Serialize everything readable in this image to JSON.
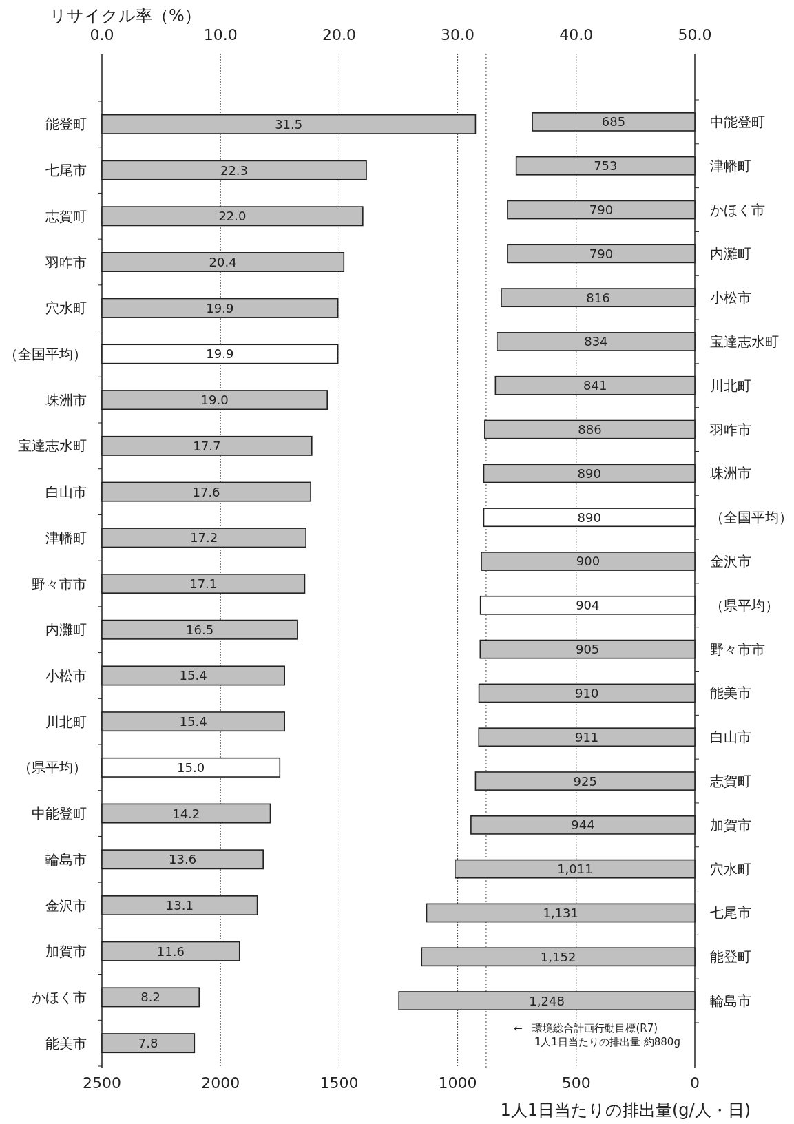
{
  "chart_data": [
    {
      "type": "bar",
      "orientation": "horizontal",
      "xlabel": "リサイクル率（%）",
      "grid": "x",
      "categories": [
        "能登町",
        "七尾市",
        "志賀町",
        "羽咋市",
        "穴水町",
        "（全国平均）",
        "珠洲市",
        "宝達志水町",
        "白山市",
        "津幡町",
        "野々市市",
        "内灘町",
        "小松市",
        "川北町",
        "（県平均）",
        "中能登町",
        "輪島市",
        "金沢市",
        "加賀市",
        "かほく市",
        "能美市"
      ],
      "values": [
        31.5,
        22.3,
        22.0,
        20.4,
        19.9,
        19.9,
        19.0,
        17.7,
        17.6,
        17.2,
        17.1,
        16.5,
        15.4,
        15.4,
        15.0,
        14.2,
        13.6,
        13.1,
        11.6,
        8.2,
        7.8
      ],
      "value_labels": [
        "31.5",
        "22.3",
        "22.0",
        "20.4",
        "19.9",
        "19.9",
        "19.0",
        "17.7",
        "17.6",
        "17.2",
        "17.1",
        "16.5",
        "15.4",
        "15.4",
        "15.0",
        "14.2",
        "13.6",
        "13.1",
        "11.6",
        "8.2",
        "7.8"
      ],
      "colors": [
        "#c0c0c0",
        "#c0c0c0",
        "#c0c0c0",
        "#c0c0c0",
        "#c0c0c0",
        "#ffffff",
        "#c0c0c0",
        "#c0c0c0",
        "#c0c0c0",
        "#c0c0c0",
        "#c0c0c0",
        "#c0c0c0",
        "#c0c0c0",
        "#c0c0c0",
        "#ffffff",
        "#c0c0c0",
        "#c0c0c0",
        "#c0c0c0",
        "#c0c0c0",
        "#c0c0c0",
        "#c0c0c0"
      ],
      "xlim": [
        0,
        50
      ],
      "xticks": [
        {
          "value": 0,
          "label": "0.0"
        },
        {
          "value": 10,
          "label": "10.0"
        },
        {
          "value": 20,
          "label": "20.0"
        },
        {
          "value": 30,
          "label": "30.0"
        },
        {
          "value": 40,
          "label": "40.0"
        },
        {
          "value": 50,
          "label": "50.0"
        }
      ]
    },
    {
      "type": "bar",
      "orientation": "horizontal",
      "xlabel": "1人1日当たりの排出量(g/人・日)",
      "categories": [
        "中能登町",
        "津幡町",
        "かほく市",
        "内灘町",
        "小松市",
        "宝達志水町",
        "川北町",
        "羽咋市",
        "珠洲市",
        "（全国平均）",
        "金沢市",
        "（県平均）",
        "野々市市",
        "能美市",
        "白山市",
        "志賀町",
        "加賀市",
        "穴水町",
        "七尾市",
        "能登町",
        "輪島市"
      ],
      "values": [
        685,
        753,
        790,
        790,
        816,
        834,
        841,
        886,
        890,
        890,
        900,
        904,
        905,
        910,
        911,
        925,
        944,
        1011,
        1131,
        1152,
        1248
      ],
      "value_labels": [
        "685",
        "753",
        "790",
        "790",
        "816",
        "834",
        "841",
        "886",
        "890",
        "890",
        "900",
        "904",
        "905",
        "910",
        "911",
        "925",
        "944",
        "1,011",
        "1,131",
        "1,152",
        "1,248"
      ],
      "colors": [
        "#c0c0c0",
        "#c0c0c0",
        "#c0c0c0",
        "#c0c0c0",
        "#c0c0c0",
        "#c0c0c0",
        "#c0c0c0",
        "#c0c0c0",
        "#c0c0c0",
        "#ffffff",
        "#c0c0c0",
        "#ffffff",
        "#c0c0c0",
        "#c0c0c0",
        "#c0c0c0",
        "#c0c0c0",
        "#c0c0c0",
        "#c0c0c0",
        "#c0c0c0",
        "#c0c0c0",
        "#c0c0c0"
      ],
      "xlim": [
        2500,
        0
      ],
      "xticks": [
        2500,
        2000,
        1500,
        1000,
        500,
        0
      ],
      "ref_lines": [
        {
          "axis": "x",
          "value": 880,
          "label": "←　環境総合計画行動目標(R7)\n　　1人1日当たりの排出量 約880g",
          "line_style": "dotted"
        }
      ]
    }
  ]
}
